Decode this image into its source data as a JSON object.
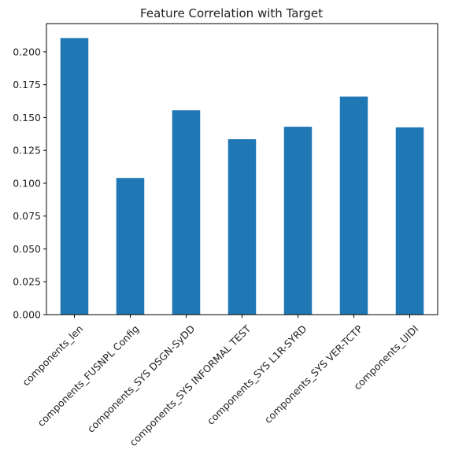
{
  "chart_data": {
    "type": "bar",
    "title": "Feature Correlation with Target",
    "xlabel": "",
    "ylabel": "",
    "categories": [
      "components_len",
      "components_FUSNPL Config",
      "components_SYS DSGN-SyDD",
      "components_SYS INFORMAL TEST",
      "components_SYS L1R-SYRD",
      "components_SYS VER-TCTP",
      "components_UIDI"
    ],
    "values": [
      0.2105,
      0.104,
      0.1555,
      0.1335,
      0.143,
      0.166,
      0.1425
    ],
    "ylim": [
      0,
      0.2215
    ],
    "yticks": [
      "0.000",
      "0.025",
      "0.050",
      "0.075",
      "0.100",
      "0.125",
      "0.150",
      "0.175",
      "0.200"
    ],
    "grid": false,
    "legend": "none",
    "bar_color": "#1f77b4",
    "axis_color": "#000000"
  }
}
